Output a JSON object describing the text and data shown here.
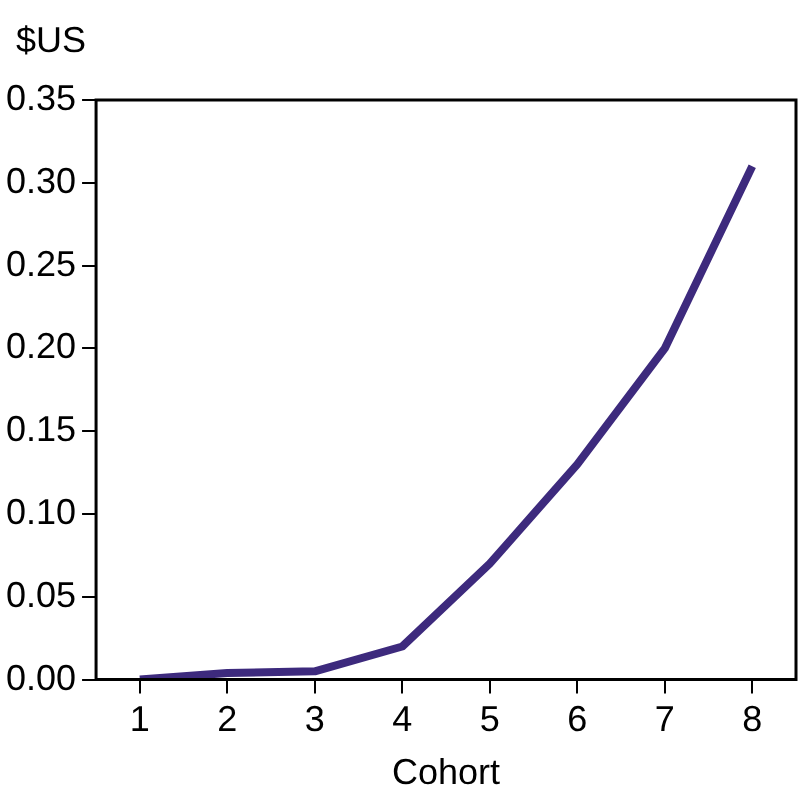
{
  "chart_data": {
    "type": "line",
    "ylabel": "$US",
    "xlabel": "Cohort",
    "categories": [
      "1",
      "2",
      "3",
      "4",
      "5",
      "6",
      "7",
      "8"
    ],
    "series": [
      {
        "color": "#3d2a7d",
        "values": [
          0,
          0.004,
          0.005,
          0.02,
          0.07,
          0.13,
          0.2,
          0.31
        ]
      }
    ],
    "ylim": [
      0,
      0.35
    ],
    "yticks": [
      {
        "value": 0,
        "label": "0.00"
      },
      {
        "value": 0.05,
        "label": "0.05"
      },
      {
        "value": 0.1,
        "label": "0.10"
      },
      {
        "value": 0.15,
        "label": "0.15"
      },
      {
        "value": 0.2,
        "label": "0.20"
      },
      {
        "value": 0.25,
        "label": "0.25"
      },
      {
        "value": 0.3,
        "label": "0.30"
      },
      {
        "value": 0.35,
        "label": "0.35"
      }
    ],
    "grid": false,
    "legend": false,
    "marker": "none",
    "line_style": "solid"
  }
}
